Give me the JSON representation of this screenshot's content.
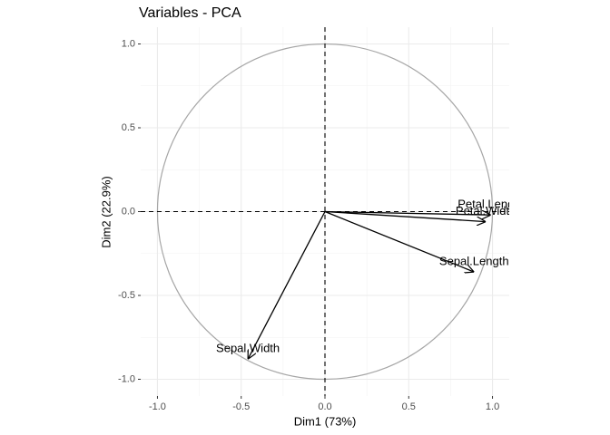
{
  "chart_data": {
    "type": "vector",
    "title": "Variables - PCA",
    "x_label": "Dim1 (73%)",
    "y_label": "Dim2 (22.9%)",
    "categories": [
      "Sepal.Length",
      "Sepal.Width",
      "Petal.Length",
      "Petal.Width"
    ],
    "x": [
      0.89,
      -0.46,
      0.99,
      0.96
    ],
    "values": [
      -0.36,
      -0.88,
      -0.02,
      -0.06
    ],
    "color": "#000000",
    "circle_radius": 1,
    "circle_color": "#a6a6a6",
    "ref_lines": [
      0
    ],
    "xlim": [
      -1.1,
      1.1
    ],
    "ylim": [
      -1.1,
      1.1
    ],
    "xticks": [
      {
        "value": -1,
        "label": "-1.0"
      },
      {
        "value": -0.5,
        "label": "-0.5"
      },
      {
        "value": 0,
        "label": "0.0"
      },
      {
        "value": 0.5,
        "label": "0.5"
      },
      {
        "value": 1,
        "label": "1.0"
      }
    ],
    "yticks": [
      {
        "value": -1,
        "label": "-1.0"
      },
      {
        "value": -0.5,
        "label": "-0.5"
      },
      {
        "value": 0,
        "label": "0.0"
      },
      {
        "value": 0.5,
        "label": "0.5"
      },
      {
        "value": 1,
        "label": "1.0"
      }
    ],
    "minor_ticks": [
      -0.75,
      -0.25,
      0.25,
      0.75
    ],
    "grid": true
  }
}
